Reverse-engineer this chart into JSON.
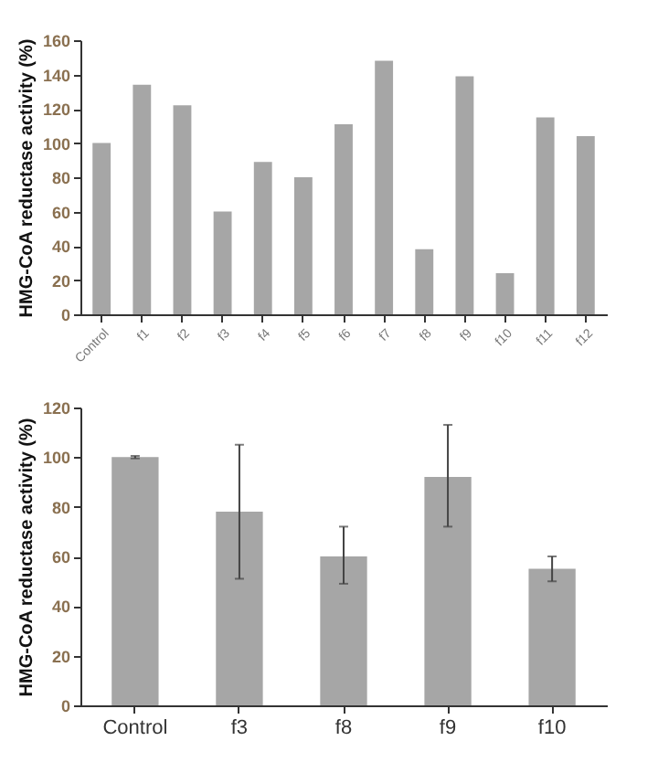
{
  "chart_data": [
    {
      "type": "bar",
      "ylabel": "HMG-CoA reductase activity (%)",
      "categories": [
        "Control",
        "f1",
        "f2",
        "f3",
        "f4",
        "f5",
        "f6",
        "f7",
        "f8",
        "f9",
        "f10",
        "f11",
        "f12"
      ],
      "series": [
        {
          "color": "#a6a6a6",
          "values": [
            100,
            134,
            122,
            60,
            89,
            80,
            111,
            148,
            38,
            139,
            24,
            115,
            104
          ]
        }
      ],
      "ylim": [
        0,
        160
      ],
      "yticks": [
        0,
        20,
        40,
        60,
        80,
        100,
        120,
        140,
        160
      ],
      "grid": false
    },
    {
      "type": "bar",
      "ylabel": "HMG-CoA reductase activity (%)",
      "categories": [
        "Control",
        "f3",
        "f8",
        "f9",
        "f10"
      ],
      "series": [
        {
          "color": "#a6a6a6",
          "values": [
            100,
            78,
            60,
            92,
            55
          ],
          "errors": [
            0.5,
            [
              51,
              105
            ],
            [
              49,
              72
            ],
            [
              72,
              113
            ],
            [
              50,
              60
            ]
          ]
        }
      ],
      "ylim": [
        0,
        120
      ],
      "yticks": [
        0,
        20,
        40,
        60,
        80,
        100,
        120
      ],
      "grid": false
    }
  ]
}
